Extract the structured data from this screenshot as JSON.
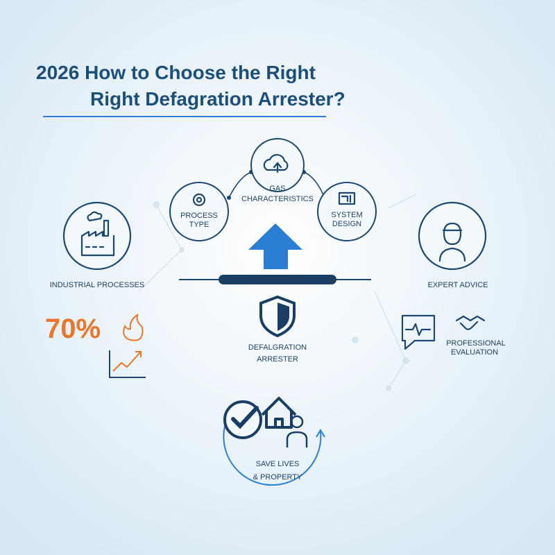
{
  "title": {
    "lines": [
      "2026 How to Choose the Right",
      "Right Defagration Arrester?"
    ]
  },
  "factors": [
    {
      "lines": [
        "GAS",
        "CHARACTERISTICS"
      ]
    },
    {
      "lines": [
        "PROCESS",
        "TYPE"
      ]
    },
    {
      "lines": [
        "SYSTEM",
        "DESIGN"
      ]
    }
  ],
  "left": {
    "label": "INDUSTRIAL PROCESSES",
    "stat": "70%"
  },
  "right": {
    "label": "EXPERT ADVICE",
    "evaluation": [
      "PROFESSIONAL",
      "EVALUATION"
    ]
  },
  "center": {
    "lines": [
      "DEFALGRATION",
      "ARRESTER"
    ]
  },
  "outcome": {
    "lines": [
      "SAVE LIVES",
      "& PROPERTY"
    ]
  }
}
